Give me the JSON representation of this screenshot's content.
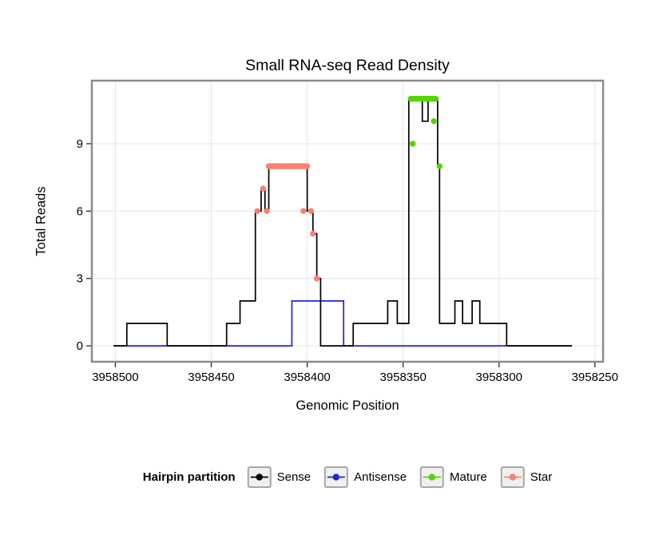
{
  "title": "Small RNA-seq Read Density",
  "axes": {
    "x_label": "Genomic Position",
    "y_label": "Total Reads"
  },
  "legend": {
    "title": "Hairpin partition",
    "items": [
      {
        "label": "Sense",
        "color": "#000000"
      },
      {
        "label": "Antisense",
        "color": "#2323DE"
      },
      {
        "label": "Mature",
        "color": "#55D400"
      },
      {
        "label": "Star",
        "color": "#FA8072"
      }
    ]
  },
  "chart_data": {
    "type": "line",
    "title": "Small RNA-seq Read Density",
    "xlabel": "Genomic Position",
    "ylabel": "Total Reads",
    "x_axis_reversed": true,
    "grid": true,
    "legend_position": "bottom",
    "x_ticks": [
      3958500,
      3958450,
      3958400,
      3958350,
      3958300,
      3958250
    ],
    "y_ticks": [
      0,
      3,
      6,
      9
    ],
    "x_domain": [
      3958511,
      3958247
    ],
    "y_range": [
      -0.6,
      11.7
    ],
    "series": [
      {
        "name": "Antisense",
        "color": "#2323DE",
        "render": "step",
        "segments": [
          [
            3958501,
            3958408,
            0
          ],
          [
            3958408,
            3958381,
            2
          ],
          [
            3958381,
            3958262,
            0
          ]
        ]
      },
      {
        "name": "Sense",
        "color": "#000000",
        "render": "step",
        "segments": [
          [
            3958501,
            3958494,
            0
          ],
          [
            3958494,
            3958473,
            1
          ],
          [
            3958473,
            3958442,
            0
          ],
          [
            3958442,
            3958435,
            1
          ],
          [
            3958435,
            3958427,
            2
          ],
          [
            3958427,
            3958424,
            6
          ],
          [
            3958424,
            3958422,
            7
          ],
          [
            3958422,
            3958420,
            6
          ],
          [
            3958420,
            3958400,
            8
          ],
          [
            3958400,
            3958397,
            6
          ],
          [
            3958397,
            3958395,
            5
          ],
          [
            3958395,
            3958393,
            3
          ],
          [
            3958393,
            3958376,
            0
          ],
          [
            3958376,
            3958358,
            1
          ],
          [
            3958358,
            3958353,
            2
          ],
          [
            3958353,
            3958347,
            1
          ],
          [
            3958347,
            3958340,
            11
          ],
          [
            3958340,
            3958337,
            10
          ],
          [
            3958337,
            3958332,
            11
          ],
          [
            3958332,
            3958331,
            8
          ],
          [
            3958331,
            3958323,
            1
          ],
          [
            3958323,
            3958319,
            2
          ],
          [
            3958319,
            3958314,
            1
          ],
          [
            3958314,
            3958310,
            2
          ],
          [
            3958310,
            3958296,
            1
          ],
          [
            3958296,
            3958262,
            0
          ]
        ]
      },
      {
        "name": "Mature",
        "color": "#55D400",
        "render": "points",
        "points": [
          [
            3958346,
            11
          ],
          [
            3958345,
            11
          ],
          [
            3958344,
            11
          ],
          [
            3958343,
            11
          ],
          [
            3958342,
            11
          ],
          [
            3958341,
            11
          ],
          [
            3958340,
            11
          ],
          [
            3958339,
            11
          ],
          [
            3958338,
            11
          ],
          [
            3958337,
            11
          ],
          [
            3958336,
            11
          ],
          [
            3958335,
            11
          ],
          [
            3958334,
            11
          ],
          [
            3958333,
            11
          ],
          [
            3958345,
            9
          ],
          [
            3958334,
            10
          ],
          [
            3958331,
            8
          ]
        ]
      },
      {
        "name": "Star",
        "color": "#FA8072",
        "render": "points",
        "points": [
          [
            3958420,
            8
          ],
          [
            3958419,
            8
          ],
          [
            3958418,
            8
          ],
          [
            3958417,
            8
          ],
          [
            3958416,
            8
          ],
          [
            3958415,
            8
          ],
          [
            3958414,
            8
          ],
          [
            3958413,
            8
          ],
          [
            3958412,
            8
          ],
          [
            3958411,
            8
          ],
          [
            3958410,
            8
          ],
          [
            3958409,
            8
          ],
          [
            3958408,
            8
          ],
          [
            3958407,
            8
          ],
          [
            3958406,
            8
          ],
          [
            3958405,
            8
          ],
          [
            3958404,
            8
          ],
          [
            3958403,
            8
          ],
          [
            3958402,
            8
          ],
          [
            3958401,
            8
          ],
          [
            3958400,
            8
          ],
          [
            3958426,
            6
          ],
          [
            3958423,
            7
          ],
          [
            3958421,
            6
          ],
          [
            3958402,
            6
          ],
          [
            3958398,
            6
          ],
          [
            3958397,
            5
          ],
          [
            3958395,
            3
          ]
        ]
      }
    ]
  }
}
